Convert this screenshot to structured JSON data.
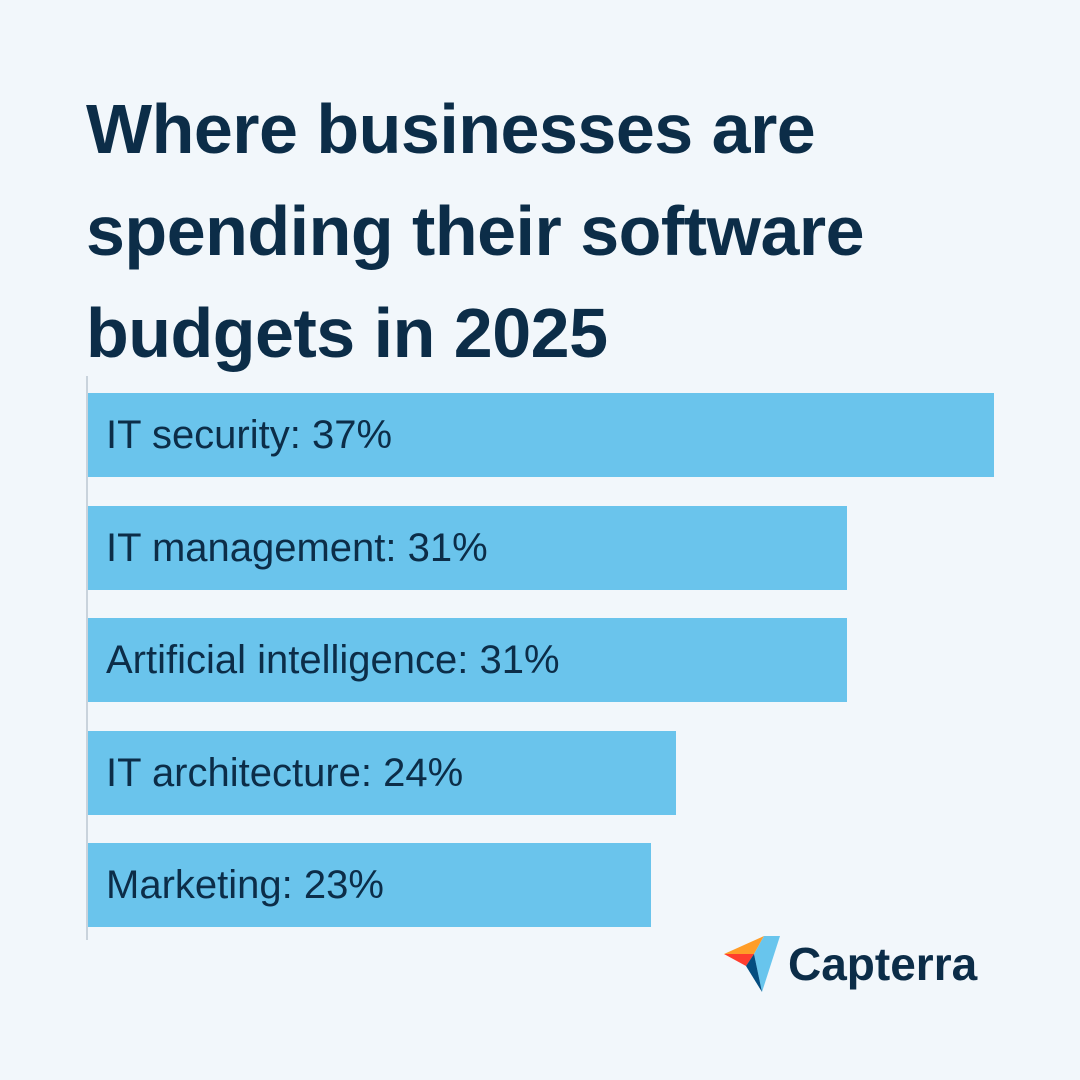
{
  "title": {
    "lines": [
      "Where businesses are",
      "spending their software",
      "budgets in 2025"
    ]
  },
  "chart_data": {
    "type": "bar",
    "orientation": "horizontal",
    "categories": [
      "IT security",
      "IT management",
      "Artificial intelligence",
      "IT architecture",
      "Marketing"
    ],
    "values": [
      37,
      31,
      31,
      24,
      23
    ],
    "labels": [
      "IT security: 37%",
      "IT management: 31%",
      "Artificial intelligence: 31%",
      "IT architecture: 24%",
      "Marketing: 23%"
    ],
    "unit": "%",
    "xlabel": "",
    "ylabel": "",
    "grid": false,
    "legend": "none",
    "bar_color": "#6ac4ec",
    "text_color": "#0c2d48"
  },
  "logo": {
    "text": "Capterra",
    "colors": {
      "yellow": "#ff9d28",
      "orange": "#ff3d2e",
      "blue": "#68c5ed",
      "navy": "#044d80"
    }
  },
  "colors": {
    "background": "#f2f7fb",
    "axis": "#c9d3dc"
  }
}
